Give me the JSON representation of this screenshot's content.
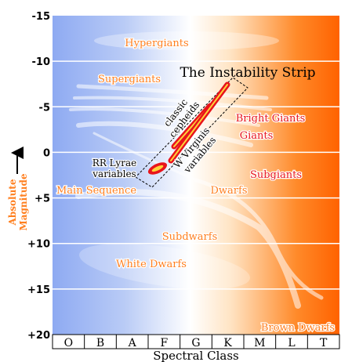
{
  "title": "The Instability Strip",
  "y_axis": {
    "label": [
      "Absolute",
      "Magnitude"
    ],
    "ticks": [
      "-15",
      "-10",
      "-5",
      "0",
      "+5",
      "+10",
      "+15",
      "+20"
    ]
  },
  "x_axis": {
    "label": "Spectral Class",
    "classes": [
      "O",
      "B",
      "A",
      "F",
      "G",
      "K",
      "M",
      "L",
      "T"
    ]
  },
  "regions": {
    "hypergiants": "Hypergiants",
    "supergiants": "Supergiants",
    "bright_giants": "Bright Giants",
    "giants": "Giants",
    "subgiants": "Subgiants",
    "main_sequence": "Main Sequence",
    "dwarfs": "Dwarfs",
    "subdwarfs": "Subdwarfs",
    "white_dwarfs": "White Dwarfs",
    "brown_dwarfs": "Brown Dwarfs"
  },
  "variables": {
    "classic_cepheids": [
      "classic",
      "cepheids"
    ],
    "w_virginis": [
      "W Virginis",
      "variables"
    ],
    "rr_lyrae": [
      "RR Lyrae",
      "variables"
    ]
  }
}
